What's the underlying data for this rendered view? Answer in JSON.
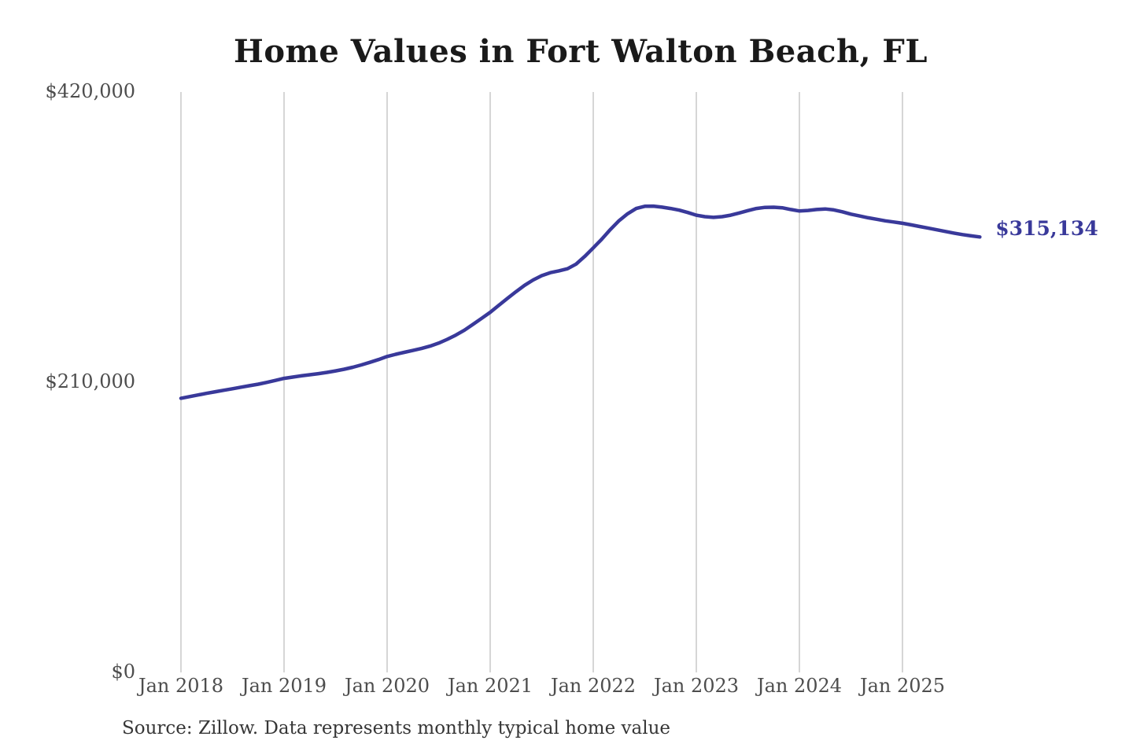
{
  "page": {
    "background_color": "#ffffff"
  },
  "colors": {
    "accent_line": "#39399a",
    "annotation_text": "#39399a",
    "gridline": "#c9c9c9",
    "title_text": "#1a1a1a",
    "tick_text": "#4d4d4d",
    "source_text": "#363636"
  },
  "chart_data": {
    "type": "line",
    "title": "Home Values in Fort Walton Beach, FL",
    "source_note": "Source: Zillow. Data represents monthly typical home value",
    "xlabel": "",
    "ylabel": "",
    "x_start": "Jan 2018",
    "x_end": "Oct 2025",
    "frequency": "monthly",
    "x_ticks": [
      "Jan 2018",
      "Jan 2019",
      "Jan 2020",
      "Jan 2021",
      "Jan 2022",
      "Jan 2023",
      "Jan 2024",
      "Jan 2025"
    ],
    "y_ticks": [
      {
        "label": "$420,000",
        "value": 420000
      },
      {
        "label": "$210,000",
        "value": 210000
      },
      {
        "label": "$0",
        "value": 0
      }
    ],
    "ylim": [
      0,
      420000
    ],
    "grid": "vertical-year-lines",
    "legend": "none",
    "series": [
      {
        "name": "Monthly typical home value",
        "color": "#39399a",
        "values": [
          198400,
          199600,
          200800,
          202000,
          203100,
          204200,
          205300,
          206400,
          207500,
          208600,
          209900,
          211300,
          212800,
          213700,
          214600,
          215400,
          216200,
          217100,
          218200,
          219400,
          220800,
          222500,
          224400,
          226400,
          228600,
          230200,
          231600,
          233000,
          234400,
          236100,
          238300,
          241000,
          244100,
          247700,
          251900,
          256200,
          260600,
          265600,
          270600,
          275500,
          280100,
          284000,
          287100,
          289300,
          290600,
          292100,
          295500,
          301000,
          307200,
          313600,
          320500,
          326900,
          331900,
          335700,
          337300,
          337400,
          336700,
          335700,
          334500,
          332800,
          330900,
          329800,
          329300,
          329800,
          330900,
          332500,
          334200,
          335700,
          336500,
          336600,
          336200,
          335000,
          333900,
          334300,
          335000,
          335400,
          334700,
          333300,
          331600,
          330300,
          329000,
          327900,
          326800,
          325900,
          325000,
          323900,
          322700,
          321500,
          320300,
          319100,
          317900,
          316800,
          315900,
          315134
        ]
      }
    ],
    "annotation": {
      "label": "$315,134",
      "value": 315134,
      "position": "end-of-line"
    }
  }
}
